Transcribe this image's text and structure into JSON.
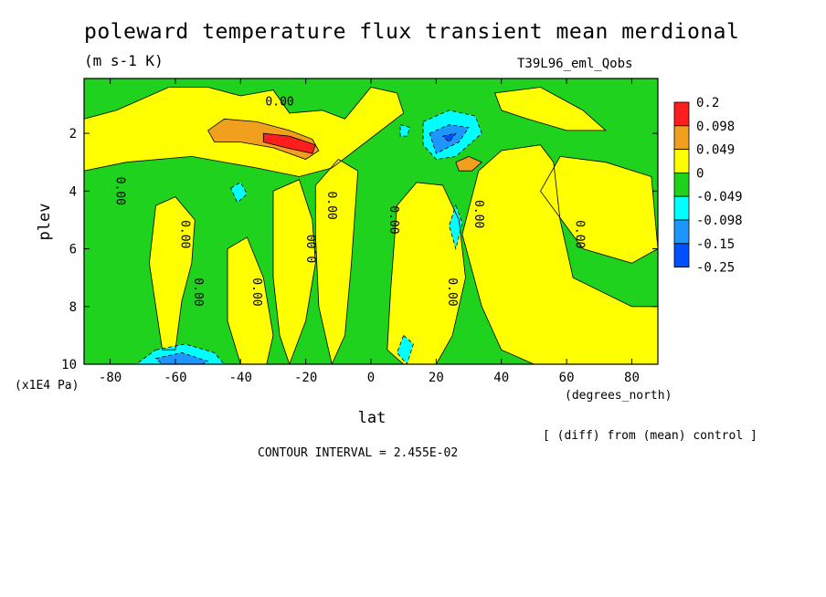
{
  "title": "poleward temperature flux transient mean merdional",
  "units": "(m s-1 K)",
  "run_id": "T39L96_eml_Qobs",
  "diff_note": "[ (diff) from (mean) control ]",
  "contour_interval": "CONTOUR INTERVAL = 2.455E-02",
  "chart_data": {
    "type": "heatmap",
    "title": "poleward temperature flux transient mean merdional",
    "xlabel": "lat",
    "xunit": "(degrees_north)",
    "ylabel": "plev",
    "yunit": "(x1E4 Pa)",
    "xlim": [
      -88,
      88
    ],
    "ylim": [
      10,
      0.1
    ],
    "x_ticks": [
      -80,
      -60,
      -40,
      -20,
      0,
      20,
      40,
      60,
      80
    ],
    "x_tick_labels": [
      "-80",
      "-60",
      "-40",
      "-20",
      "0",
      "20",
      "40",
      "60",
      "80"
    ],
    "y_ticks": [
      2,
      4,
      6,
      8,
      10
    ],
    "y_tick_labels": [
      "2",
      "4",
      "6",
      "8",
      "10"
    ],
    "legend": {
      "placement": "right",
      "labels": [
        "0.2",
        "0.098",
        "0.049",
        "0",
        "-0.049",
        "-0.098",
        "-0.15",
        "-0.25"
      ],
      "colors": [
        "#ff1e1e",
        "#f0a01e",
        "#ffff00",
        "#1ed21e",
        "#00ffff",
        "#1e96ff",
        "#0050ff"
      ]
    },
    "contour_labels": [
      "0.00",
      "0.00",
      "0.00",
      "0.00",
      "0.00",
      "0.00",
      "0.00",
      "0.00",
      "0.00",
      "0.00",
      "0.00"
    ],
    "regions": [
      {
        "value_class": "positive",
        "color": "#ffff00",
        "points": [
          [
            -88,
            1.5
          ],
          [
            -78,
            1.2
          ],
          [
            -62,
            0.4
          ],
          [
            -50,
            0.4
          ],
          [
            -40,
            0.7
          ],
          [
            -30,
            0.5
          ],
          [
            -25,
            1.3
          ],
          [
            -15,
            1.2
          ],
          [
            -8,
            1.5
          ],
          [
            0,
            0.4
          ],
          [
            8,
            0.6
          ],
          [
            10,
            1.3
          ],
          [
            -5,
            2.6
          ],
          [
            -12,
            3.2
          ],
          [
            -22,
            3.5
          ],
          [
            -35,
            3.2
          ],
          [
            -55,
            2.8
          ],
          [
            -75,
            3.0
          ],
          [
            -88,
            3.3
          ]
        ]
      },
      {
        "value_class": "positive",
        "color": "#ffff00",
        "points": [
          [
            -66,
            4.5
          ],
          [
            -60,
            4.2
          ],
          [
            -54,
            5.0
          ],
          [
            -55,
            6.5
          ],
          [
            -58,
            7.8
          ],
          [
            -60,
            9.5
          ],
          [
            -64,
            9.5
          ],
          [
            -66,
            8.0
          ],
          [
            -68,
            6.5
          ]
        ]
      },
      {
        "value_class": "positive",
        "color": "#ffff00",
        "points": [
          [
            -44,
            6.0
          ],
          [
            -38,
            5.6
          ],
          [
            -33,
            7.0
          ],
          [
            -30,
            9.0
          ],
          [
            -32,
            10.0
          ],
          [
            -40,
            10.0
          ],
          [
            -44,
            8.5
          ]
        ]
      },
      {
        "value_class": "positive",
        "color": "#ffff00",
        "points": [
          [
            -30,
            4.0
          ],
          [
            -22,
            3.6
          ],
          [
            -18,
            5.0
          ],
          [
            -17,
            6.5
          ],
          [
            -20,
            8.5
          ],
          [
            -25,
            10.0
          ],
          [
            -28,
            9.0
          ],
          [
            -30,
            7.0
          ]
        ]
      },
      {
        "value_class": "positive",
        "color": "#ffff00",
        "points": [
          [
            -17,
            3.8
          ],
          [
            -10,
            2.9
          ],
          [
            -4,
            3.3
          ],
          [
            -6,
            6.5
          ],
          [
            -8,
            9.0
          ],
          [
            -12,
            10.0
          ],
          [
            -16,
            8.0
          ],
          [
            -17,
            5.5
          ]
        ]
      },
      {
        "value_class": "positive",
        "color": "#ffff00",
        "points": [
          [
            8,
            4.5
          ],
          [
            14,
            3.7
          ],
          [
            22,
            3.8
          ],
          [
            27,
            5.0
          ],
          [
            29,
            7.0
          ],
          [
            25,
            9.0
          ],
          [
            20,
            10.0
          ],
          [
            10,
            10.0
          ],
          [
            5,
            9.5
          ],
          [
            6,
            7.5
          ]
        ]
      },
      {
        "value_class": "positive",
        "color": "#ffff00",
        "points": [
          [
            28,
            5.5
          ],
          [
            33,
            3.3
          ],
          [
            40,
            2.6
          ],
          [
            52,
            2.4
          ],
          [
            56,
            3.0
          ],
          [
            58,
            5.0
          ],
          [
            62,
            7.0
          ],
          [
            80,
            8.0
          ],
          [
            88,
            8.0
          ],
          [
            88,
            10.0
          ],
          [
            50,
            10.0
          ],
          [
            40,
            9.5
          ],
          [
            34,
            8.0
          ]
        ]
      },
      {
        "value_class": "positive",
        "color": "#ffff00",
        "points": [
          [
            52,
            4.0
          ],
          [
            58,
            2.8
          ],
          [
            72,
            3.0
          ],
          [
            86,
            3.5
          ],
          [
            88,
            6.0
          ],
          [
            80,
            6.5
          ],
          [
            65,
            6.0
          ]
        ]
      },
      {
        "value_class": "positive",
        "color": "#ffff00",
        "points": [
          [
            38,
            0.6
          ],
          [
            52,
            0.4
          ],
          [
            65,
            1.2
          ],
          [
            72,
            1.9
          ],
          [
            60,
            1.9
          ],
          [
            48,
            1.5
          ],
          [
            40,
            1.2
          ]
        ]
      },
      {
        "value_class": "positive",
        "color": "#f0a01e",
        "points": [
          [
            -50,
            1.9
          ],
          [
            -45,
            1.5
          ],
          [
            -35,
            1.6
          ],
          [
            -25,
            1.9
          ],
          [
            -18,
            2.2
          ],
          [
            -16,
            2.6
          ],
          [
            -20,
            2.9
          ],
          [
            -30,
            2.5
          ],
          [
            -40,
            2.3
          ],
          [
            -48,
            2.3
          ]
        ]
      },
      {
        "value_class": "positive",
        "color": "#f0a01e",
        "points": [
          [
            26,
            3.0
          ],
          [
            30,
            2.8
          ],
          [
            34,
            3.0
          ],
          [
            31,
            3.3
          ],
          [
            27,
            3.3
          ]
        ]
      },
      {
        "value_class": "positive",
        "color": "#ff1e1e",
        "points": [
          [
            -33,
            2.0
          ],
          [
            -25,
            2.1
          ],
          [
            -17,
            2.4
          ],
          [
            -18,
            2.7
          ],
          [
            -26,
            2.5
          ],
          [
            -33,
            2.3
          ]
        ]
      },
      {
        "value_class": "negative",
        "color": "#00ffff",
        "points": [
          [
            -66,
            9.5
          ],
          [
            -57,
            9.3
          ],
          [
            -48,
            9.6
          ],
          [
            -45,
            10.0
          ],
          [
            -72,
            10.0
          ]
        ]
      },
      {
        "value_class": "negative",
        "color": "#00ffff",
        "points": [
          [
            16,
            1.6
          ],
          [
            24,
            1.2
          ],
          [
            32,
            1.4
          ],
          [
            34,
            2.0
          ],
          [
            26,
            2.8
          ],
          [
            20,
            2.9
          ],
          [
            16,
            2.4
          ]
        ]
      },
      {
        "value_class": "negative",
        "color": "#00ffff",
        "points": [
          [
            -43,
            3.9
          ],
          [
            -40,
            3.7
          ],
          [
            -38,
            4.1
          ],
          [
            -41,
            4.4
          ]
        ]
      },
      {
        "value_class": "negative",
        "color": "#00ffff",
        "points": [
          [
            26,
            4.5
          ],
          [
            28,
            5.1
          ],
          [
            26,
            6.0
          ],
          [
            24,
            5.2
          ]
        ]
      },
      {
        "value_class": "negative",
        "color": "#00ffff",
        "points": [
          [
            10,
            9.0
          ],
          [
            13,
            9.3
          ],
          [
            11,
            10.0
          ],
          [
            8,
            9.6
          ]
        ]
      },
      {
        "value_class": "negative",
        "color": "#00ffff",
        "points": [
          [
            9,
            1.7
          ],
          [
            12,
            1.8
          ],
          [
            11,
            2.1
          ],
          [
            9,
            2.1
          ]
        ]
      },
      {
        "value_class": "negative",
        "color": "#1e96ff",
        "points": [
          [
            -66,
            9.8
          ],
          [
            -58,
            9.6
          ],
          [
            -50,
            9.9
          ],
          [
            -52,
            10.0
          ],
          [
            -64,
            10.0
          ]
        ]
      },
      {
        "value_class": "negative",
        "color": "#1e96ff",
        "points": [
          [
            18,
            2.0
          ],
          [
            24,
            1.7
          ],
          [
            30,
            1.8
          ],
          [
            27,
            2.3
          ],
          [
            20,
            2.7
          ]
        ]
      },
      {
        "value_class": "negative",
        "color": "#0050ff",
        "points": [
          [
            22,
            2.1
          ],
          [
            26,
            2.0
          ],
          [
            24,
            2.3
          ]
        ]
      }
    ]
  }
}
